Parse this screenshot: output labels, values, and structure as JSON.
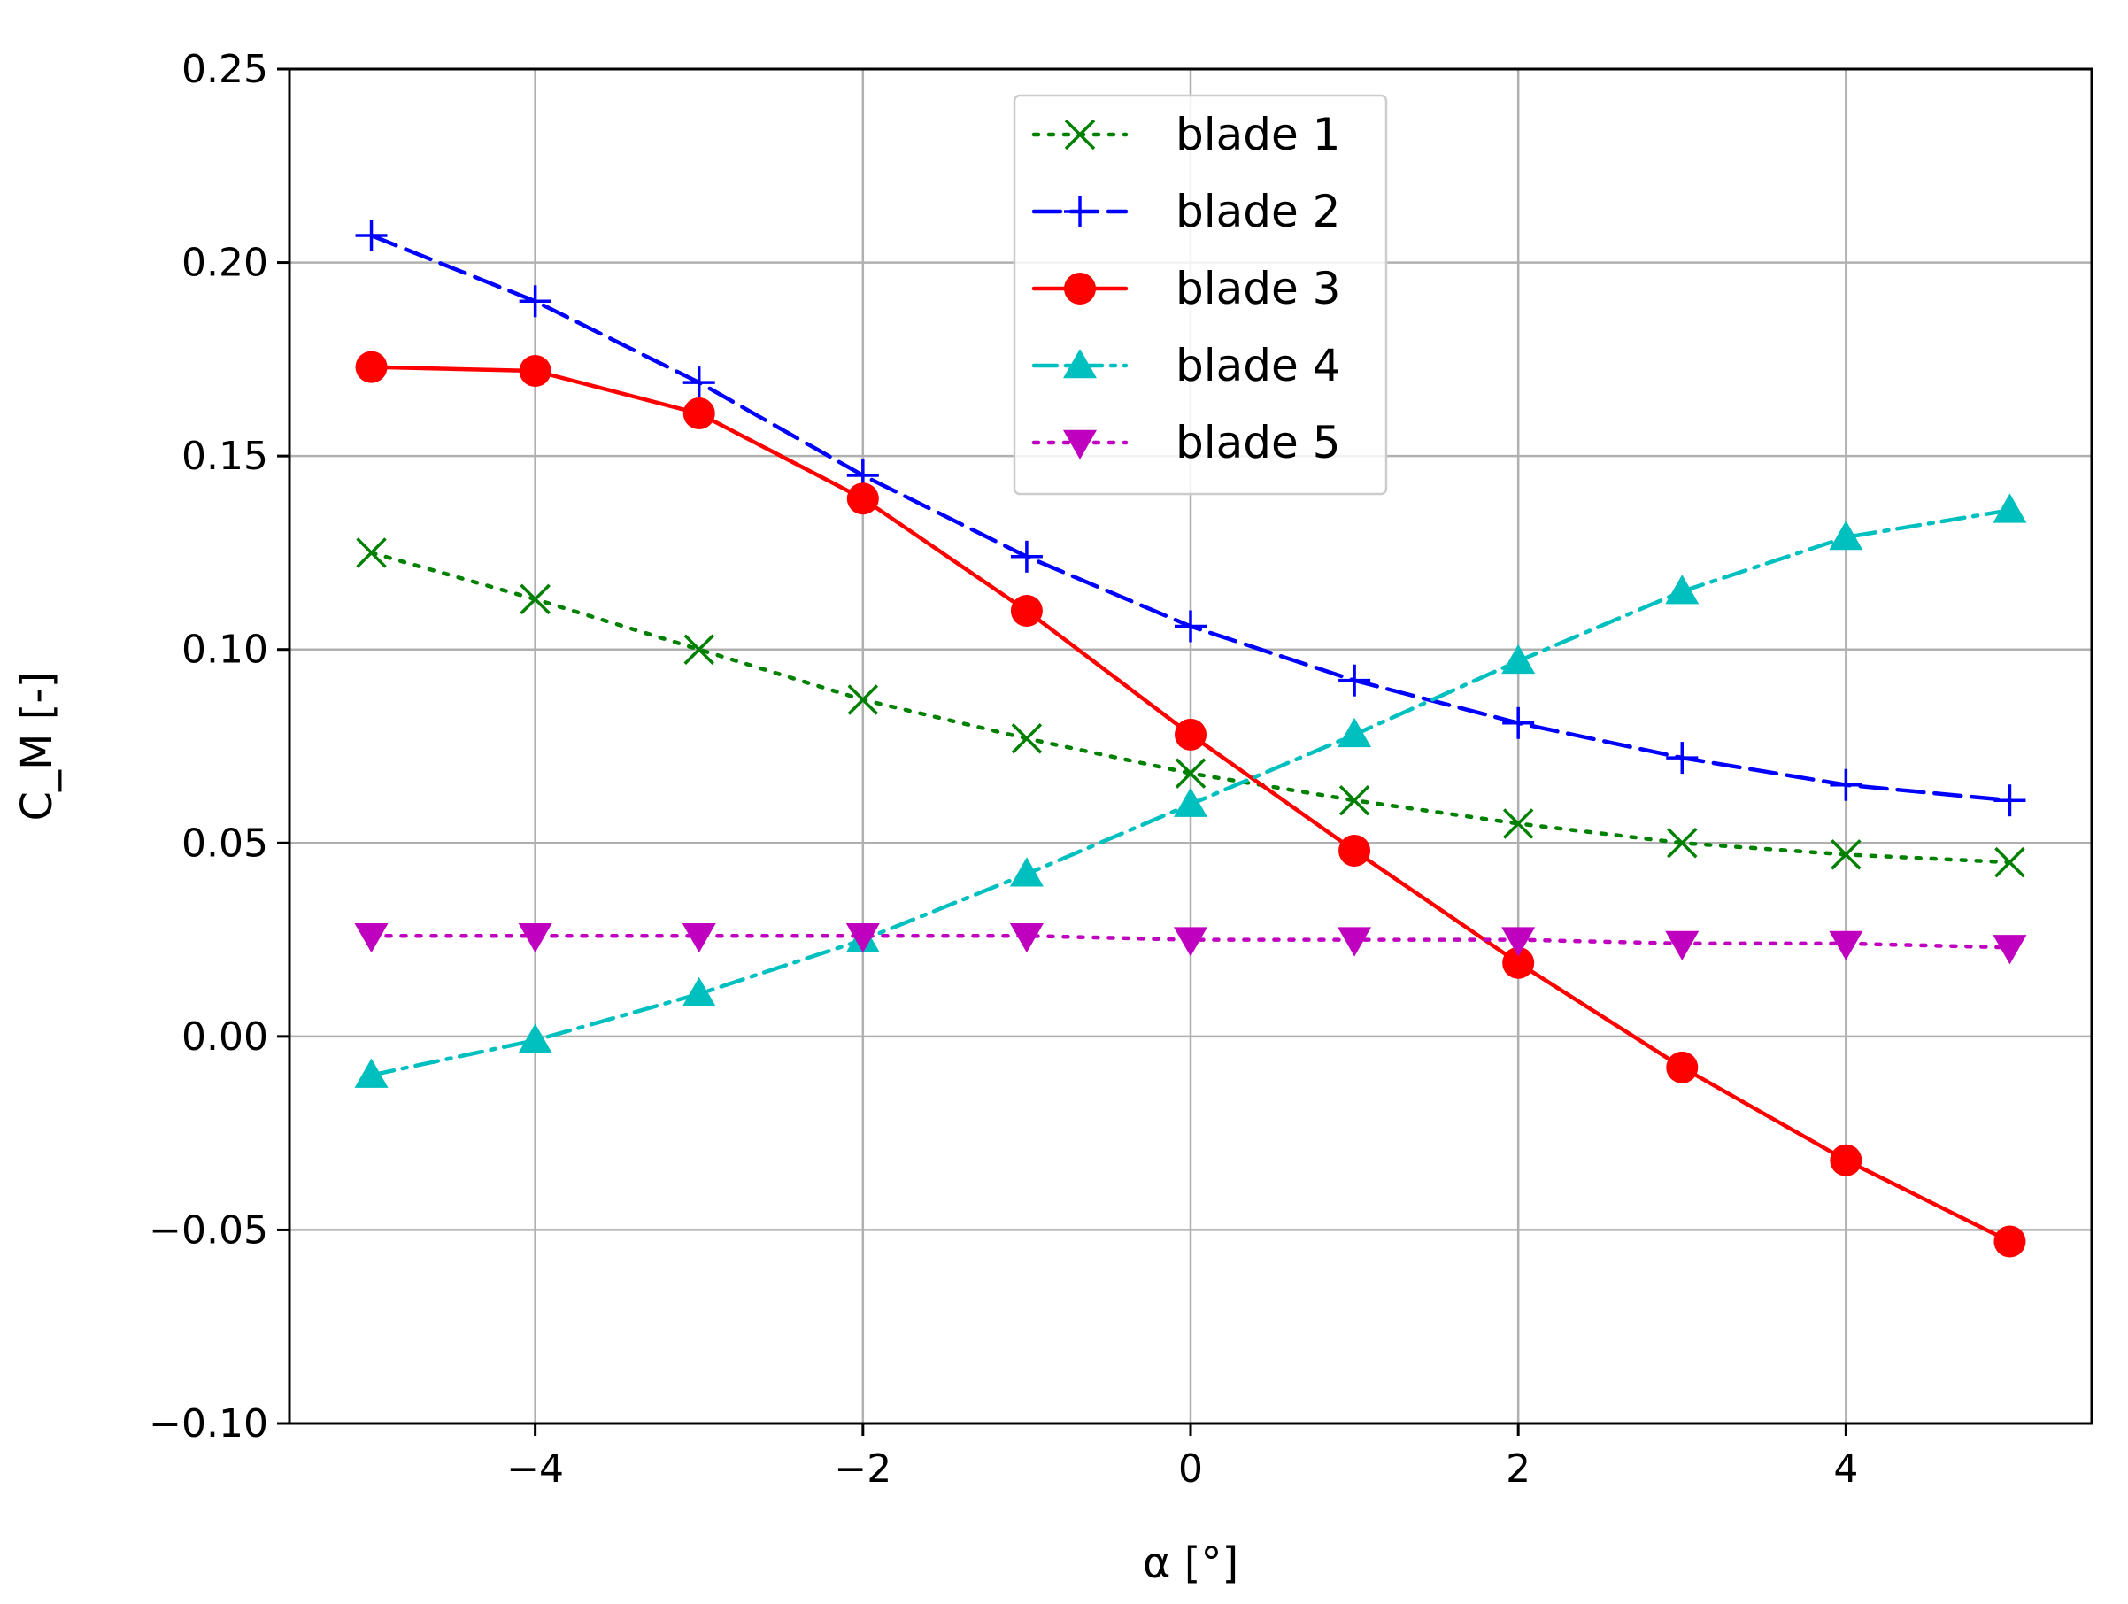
{
  "chart_data": {
    "type": "line",
    "xlabel": "α [°]",
    "ylabel": "C_M [-]",
    "xlim": [
      -5.5,
      5.5
    ],
    "ylim": [
      -0.1,
      0.25
    ],
    "xticks": [
      -4,
      -2,
      0,
      2,
      4
    ],
    "xtick_labels": [
      "−4",
      "−2",
      "0",
      "2",
      "4"
    ],
    "yticks": [
      -0.1,
      -0.05,
      0.0,
      0.05,
      0.1,
      0.15,
      0.2,
      0.25
    ],
    "ytick_labels": [
      "−0.10",
      "−0.05",
      "0.00",
      "0.05",
      "0.10",
      "0.15",
      "0.20",
      "0.25"
    ],
    "grid": true,
    "legend_position": "top-center",
    "x": [
      -5,
      -4,
      -3,
      -2,
      -1,
      0,
      1,
      2,
      3,
      4,
      5
    ],
    "series": [
      {
        "name": "blade 1",
        "color": "#008000",
        "linestyle": "dotted",
        "marker": "x",
        "values": [
          0.125,
          0.113,
          0.1,
          0.087,
          0.077,
          0.068,
          0.061,
          0.055,
          0.05,
          0.047,
          0.045
        ]
      },
      {
        "name": "blade 2",
        "color": "#0000ff",
        "linestyle": "dashed",
        "marker": "plus",
        "values": [
          0.207,
          0.19,
          0.169,
          0.145,
          0.124,
          0.106,
          0.092,
          0.081,
          0.072,
          0.065,
          0.061
        ]
      },
      {
        "name": "blade 3",
        "color": "#ff0000",
        "linestyle": "solid",
        "marker": "circle",
        "values": [
          0.173,
          0.172,
          0.161,
          0.139,
          0.11,
          0.078,
          0.048,
          0.019,
          -0.008,
          -0.032,
          -0.053
        ]
      },
      {
        "name": "blade 4",
        "color": "#00bfbf",
        "linestyle": "dashdot",
        "marker": "triangle-up",
        "values": [
          -0.01,
          -0.001,
          0.011,
          0.025,
          0.042,
          0.06,
          0.078,
          0.097,
          0.115,
          0.129,
          0.136
        ]
      },
      {
        "name": "blade 5",
        "color": "#bf00bf",
        "linestyle": "dotted",
        "marker": "triangle-down",
        "values": [
          0.026,
          0.026,
          0.026,
          0.026,
          0.026,
          0.025,
          0.025,
          0.025,
          0.024,
          0.024,
          0.023
        ]
      }
    ]
  }
}
